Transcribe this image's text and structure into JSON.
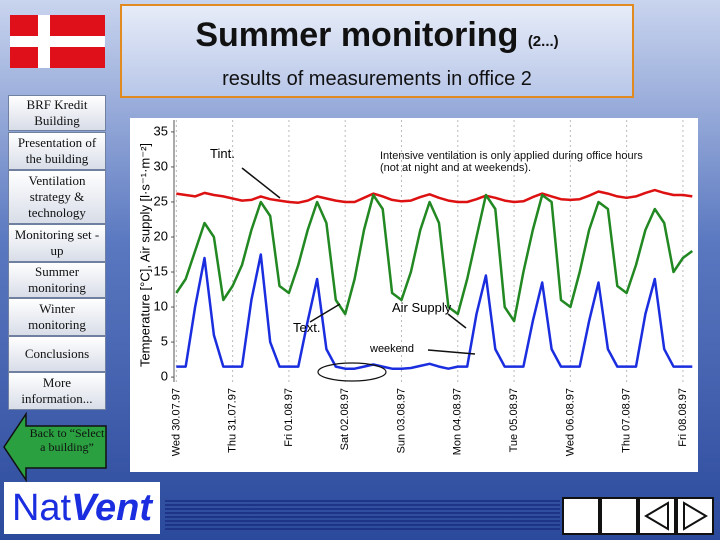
{
  "header": {
    "title": "Summer monitoring",
    "title_suffix": "(2...)",
    "subtitle": "results of measurements in office 2"
  },
  "nav": [
    "BRF Kredit Building",
    "Presentation of the building",
    "Ventilation strategy & technology",
    "Monitoring set -up",
    "Summer monitoring",
    "Winter monitoring",
    "Conclusions",
    "More information..."
  ],
  "back_button": "Back to “Select a building”",
  "logo": {
    "part1": "Nat",
    "part2": "Vent"
  },
  "chart_data": {
    "type": "line",
    "y_label": "Temperature [°C], Air supply [l·s⁻¹·m⁻²]",
    "x": [
      0,
      4,
      8,
      12,
      16,
      20,
      24,
      28,
      32,
      36,
      40,
      44,
      48,
      52,
      56,
      60,
      64,
      68,
      72,
      76,
      80,
      84,
      88,
      92,
      96,
      100,
      104,
      108,
      112,
      116,
      120,
      124,
      128,
      132,
      136,
      140,
      144,
      148,
      152,
      156,
      160,
      164,
      168,
      172,
      176,
      180,
      184,
      188,
      192,
      196,
      200,
      204,
      208,
      212,
      216,
      220
    ],
    "xlim": [
      -1,
      222
    ],
    "xticks": [
      {
        "value": 0,
        "label": "Wed 30.07.97"
      },
      {
        "value": 24,
        "label": "Thu 31.07.97"
      },
      {
        "value": 48,
        "label": "Fri 01.08.97"
      },
      {
        "value": 72,
        "label": "Sat 02.08.97"
      },
      {
        "value": 96,
        "label": "Sun 03.08.97"
      },
      {
        "value": 120,
        "label": "Mon 04.08.97"
      },
      {
        "value": 144,
        "label": "Tue 05.08.97"
      },
      {
        "value": 168,
        "label": "Wed 06.08.97"
      },
      {
        "value": 192,
        "label": "Thu 07.08.97"
      },
      {
        "value": 216,
        "label": "Fri 08.08.97"
      }
    ],
    "ylim": [
      -0.7,
      36.7
    ],
    "yticks": [
      0,
      5,
      10,
      15,
      20,
      25,
      30,
      35
    ],
    "xgrid": true,
    "series": [
      {
        "name": "Tint.",
        "color": "#dd1111",
        "values": [
          26.2,
          26,
          25.8,
          26.3,
          26,
          25.8,
          25.5,
          25.2,
          25.3,
          25.8,
          25.4,
          25.2,
          25,
          24.9,
          25.2,
          25.8,
          25.5,
          25.2,
          25,
          25,
          25.6,
          26.2,
          25.8,
          25.3,
          25.1,
          25.2,
          25.7,
          26.1,
          25.6,
          25.2,
          25,
          25,
          25.4,
          25.9,
          25.6,
          25.2,
          25,
          25.1,
          25.7,
          26.2,
          25.8,
          25.4,
          25.3,
          25.4,
          25.9,
          26.5,
          26.2,
          25.8,
          25.6,
          25.8,
          26.3,
          26.7,
          26.3,
          26,
          26,
          25.8
        ]
      },
      {
        "name": "Text.",
        "color": "#228822",
        "values": [
          12,
          14,
          18,
          22,
          20,
          11,
          13,
          16,
          21,
          25,
          23,
          13,
          12,
          16,
          21,
          25,
          22,
          11,
          9,
          14,
          21,
          26,
          24,
          12,
          11,
          15,
          21,
          25,
          22,
          10,
          9,
          14,
          20,
          26,
          24,
          10,
          8,
          15,
          21,
          26,
          25,
          11,
          10,
          15,
          21,
          25,
          24,
          13,
          12,
          16,
          21,
          24,
          22,
          15,
          17,
          18
        ]
      },
      {
        "name": "Air Supply",
        "color": "#1a2ee0",
        "values": [
          1.5,
          1.5,
          10,
          17,
          6,
          1.5,
          1.5,
          1.5,
          11,
          17.5,
          5,
          1.5,
          1.5,
          1.5,
          8,
          14,
          4,
          1.5,
          1.2,
          1.2,
          1.5,
          1.8,
          1.5,
          1.2,
          1.2,
          1.3,
          1.6,
          1.9,
          1.5,
          1.2,
          1.5,
          1.5,
          9,
          14.5,
          4,
          1.5,
          1.5,
          1.5,
          8,
          13.5,
          4,
          1.5,
          1.5,
          1.5,
          8,
          13.5,
          4,
          1.5,
          1.5,
          1.5,
          9,
          14,
          4,
          1.5,
          1.5,
          1.5
        ]
      }
    ],
    "annotations": [
      "Intensive ventilation is only applied during office hours (not at night and at weekends).",
      "weekend"
    ]
  }
}
